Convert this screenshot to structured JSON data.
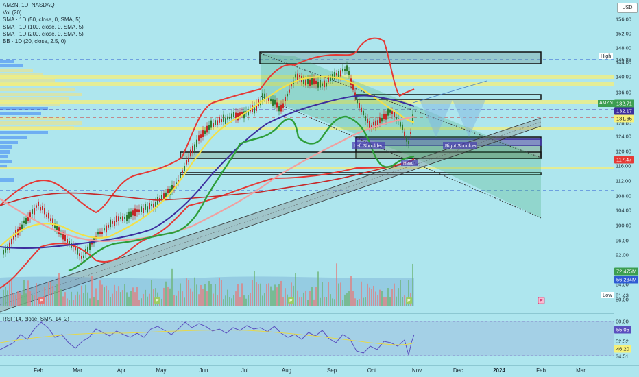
{
  "legend": {
    "symbol": "AMZN, 1D, NASDAQ",
    "vol": "Vol (20)",
    "sma50": "SMA · 1D (50, close, 0, SMA, 5)",
    "sma100": "SMA · 1D (100, close, 0, SMA, 5)",
    "sma200": "SMA · 1D (200, close, 0, SMA, 5)",
    "bb": "BB · 1D (20, close, 2.5, 0)",
    "rsi": "RSI (14, close, SMA, 14, 2)"
  },
  "currency": "USD",
  "price_ticks": [
    "156.00",
    "152.00",
    "148.00",
    "144.00",
    "140.00",
    "136.00",
    "128.00",
    "124.00",
    "120.00",
    "116.00",
    "112.00",
    "108.00",
    "104.00",
    "100.00",
    "96.00",
    "92.00",
    "88.00",
    "84.00",
    "80.00"
  ],
  "price_tags": {
    "amzn": "132.71",
    "sma_a": "132.17",
    "sma_b": "131.65",
    "low_level": "117.47",
    "vol1": "72.475M",
    "vol2": "56.234M"
  },
  "high_label": "High",
  "high_value": "145.86",
  "low_label": "Low",
  "low_value": "81.43",
  "symbol_tag": "AMZN",
  "rsi_ticks": {
    "r1": "60.00",
    "r2": "55.05",
    "r3": "52.52",
    "r4": "46.20",
    "r5": "34.51"
  },
  "time_ticks": [
    "Feb",
    "Mar",
    "Apr",
    "May",
    "Jun",
    "Jul",
    "Aug",
    "Sep",
    "Oct",
    "Nov",
    "Dec",
    "2024",
    "Feb",
    "Mar"
  ],
  "annotations": {
    "left_shoulder": "Left Shoulder",
    "right_shoulder": "Right Shoulder",
    "head": "Head"
  },
  "earnings_marker": "E",
  "colors": {
    "bg": "#aee6ee",
    "up": "#2e7d32",
    "down": "#c62828",
    "bb": "#e53935",
    "sma50": "#f2e04a",
    "sma100": "#3d2e9e",
    "sma200": "#f0a0a0",
    "green_band": "#2e9e3a",
    "zone_yellow": "#f5f07a"
  }
}
